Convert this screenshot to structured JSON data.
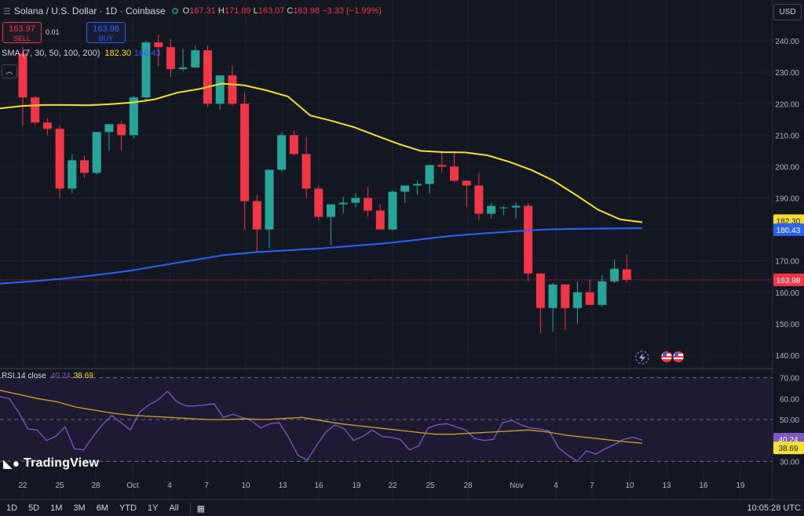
{
  "header": {
    "title": "Solana / U.S. Dollar · 1D · Coinbase",
    "open_label": "O",
    "open": "167.31",
    "high_label": "H",
    "high": "171.89",
    "low_label": "L",
    "low": "163.07",
    "close_label": "C",
    "close": "163.98",
    "change": "−3.33 (−1.99%)"
  },
  "trade": {
    "sell_price": "163.97",
    "sell_label": "SELL",
    "spread": "0.01",
    "buy_price": "163.98",
    "buy_label": "BUY"
  },
  "currency": "USD",
  "sma_legend": {
    "label": "SMA (7, 30, 50, 100, 200)",
    "value1": "182.30",
    "value2": "180.43"
  },
  "rsi_legend": {
    "label": "RSI 14 close",
    "value1": "40.24",
    "value2": "38.69"
  },
  "brand": "TradingView",
  "timeframes": [
    "1D",
    "5D",
    "1M",
    "3M",
    "6M",
    "YTD",
    "1Y",
    "All"
  ],
  "clock": "10:05:28 UTC",
  "colors": {
    "up": "#26a69a",
    "down": "#f23645",
    "sma_yellow": "#f7e02a",
    "sma_blue": "#2962ff",
    "rsi": "#7e57c2",
    "bg": "#131722"
  },
  "icons": [
    "menu-icon",
    "status-dot-icon",
    "collapse-arrow-icon",
    "tradingview-logo-icon",
    "calendar-icon",
    "lightning-event-icon",
    "us-flag-event-icon"
  ],
  "chart_data": [
    {
      "type": "candlestick",
      "ylim": [
        137,
        248
      ],
      "y_ticks": [
        140,
        150,
        160,
        170,
        180,
        190,
        200,
        210,
        220,
        230,
        240
      ],
      "x_ticks": [
        "22",
        "25",
        "28",
        "Oct",
        "4",
        "7",
        "10",
        "13",
        "16",
        "19",
        "22",
        "25",
        "28",
        "Nov",
        "4",
        "7",
        "10",
        "13",
        "16",
        "19"
      ],
      "price_labels": {
        "sma_yellow": "182.30",
        "sma_blue": "180.43",
        "last": "163.98"
      },
      "ohlc": [
        [
          235.9,
          238.0,
          213.0,
          222.0
        ],
        [
          222.0,
          222.5,
          213.2,
          214.0
        ],
        [
          214.0,
          215.5,
          210.0,
          212.0
        ],
        [
          212.0,
          213.0,
          190.0,
          193.0
        ],
        [
          193.0,
          204.0,
          191.5,
          202.0
        ],
        [
          202.0,
          203.5,
          196.5,
          198.0
        ],
        [
          198.0,
          211.0,
          197.5,
          211.0
        ],
        [
          211.0,
          212.5,
          205.0,
          213.5
        ],
        [
          213.5,
          214.5,
          205.0,
          210.0
        ],
        [
          210.0,
          222.5,
          209.0,
          222.0
        ],
        [
          222.0,
          240.0,
          220.5,
          239.5
        ],
        [
          239.5,
          242.0,
          232.0,
          238.0
        ],
        [
          238.0,
          240.5,
          228.5,
          231.0
        ],
        [
          231.0,
          237.5,
          230.5,
          231.5
        ],
        [
          231.5,
          238.5,
          231.5,
          237.0
        ],
        [
          237.0,
          238.5,
          219.0,
          220.0
        ],
        [
          220.0,
          229.0,
          218.0,
          229.0
        ],
        [
          229.0,
          232.0,
          219.5,
          220.0
        ],
        [
          220.0,
          223.5,
          180.0,
          189.0
        ],
        [
          189.0,
          191.0,
          173.0,
          180.0
        ],
        [
          180.0,
          198.0,
          174.0,
          199.0
        ],
        [
          199.0,
          211.0,
          198.5,
          210.0
        ],
        [
          210.0,
          211.5,
          203.5,
          204.0
        ],
        [
          204.0,
          209.5,
          190.0,
          193.0
        ],
        [
          193.0,
          194.0,
          183.0,
          184.0
        ],
        [
          184.0,
          188.0,
          175.0,
          188.0
        ],
        [
          188.0,
          190.5,
          185.0,
          188.5
        ],
        [
          188.5,
          191.5,
          187.0,
          190.0
        ],
        [
          190.0,
          193.5,
          184.0,
          186.0
        ],
        [
          186.0,
          188.0,
          180.0,
          180.0
        ],
        [
          180.0,
          192.5,
          179.5,
          192.0
        ],
        [
          192.0,
          194.0,
          188.5,
          194.0
        ],
        [
          194.0,
          195.5,
          191.0,
          194.5
        ],
        [
          194.5,
          200.5,
          191.5,
          200.5
        ],
        [
          200.5,
          204.5,
          198.0,
          200.0
        ],
        [
          200.0,
          205.0,
          195.0,
          195.5
        ],
        [
          195.5,
          195.5,
          187.0,
          194.0
        ],
        [
          194.0,
          198.0,
          183.0,
          185.0
        ],
        [
          185.0,
          188.5,
          183.5,
          187.5
        ],
        [
          187.0,
          187.5,
          184.5,
          187.0
        ],
        [
          187.0,
          188.5,
          183.5,
          187.5
        ],
        [
          187.5,
          188.5,
          163.5,
          166.0
        ],
        [
          166.0,
          166.0,
          147.0,
          155.0
        ],
        [
          155.0,
          163.0,
          147.5,
          162.5
        ],
        [
          162.5,
          162.5,
          148.0,
          155.0
        ],
        [
          155.0,
          163.5,
          150.0,
          160.0
        ],
        [
          160.0,
          164.0,
          156.0,
          156.0
        ],
        [
          156.0,
          165.5,
          155.5,
          163.5
        ],
        [
          163.5,
          170.5,
          163.0,
          167.5
        ],
        [
          167.31,
          171.89,
          163.07,
          163.98
        ]
      ],
      "sma_yellow_series": [
        218.5,
        219.3,
        219.6,
        219.6,
        219.5,
        219.9,
        220.4,
        221.4,
        223.5,
        224.7,
        226.4,
        225.9,
        224.3,
        222.3,
        216.3,
        214.5,
        212.5,
        209.8,
        207.2,
        205.0,
        204.6,
        204.5,
        203.6,
        201.5,
        198.9,
        195.5,
        191.0,
        186.3,
        183.2,
        182.3
      ],
      "sma_blue_series": [
        162.8,
        163.5,
        164.4,
        165.5,
        166.8,
        168.5,
        170.2,
        171.9,
        172.8,
        173.4,
        174.0,
        174.8,
        175.6,
        176.7,
        177.9,
        178.7,
        179.4,
        180.0,
        180.2,
        180.3,
        180.43
      ]
    },
    {
      "type": "line",
      "title": "RSI 14 close",
      "ylim": [
        26,
        74
      ],
      "y_ticks": [
        30,
        40,
        50,
        60,
        70
      ],
      "price_labels": {
        "rsi": "40.24",
        "rsi_ma": "38.69"
      },
      "series": [
        {
          "name": "RSI",
          "values": [
            61.0,
            60.0,
            53.5,
            45.5,
            45.0,
            40.0,
            42.0,
            46.5,
            36.0,
            35.5,
            42.0,
            47.5,
            52.0,
            48.5,
            45.0,
            53.5,
            57.0,
            59.5,
            63.5,
            58.5,
            56.5,
            56.5,
            57.0,
            57.5,
            51.0,
            52.5,
            51.0,
            49.5,
            46.0,
            48.0,
            48.5,
            41.5,
            33.0,
            30.5,
            37.5,
            44.0,
            47.5,
            45.5,
            40.0,
            42.0,
            45.0,
            42.0,
            41.5,
            40.5,
            35.5,
            37.5,
            46.0,
            47.5,
            48.0,
            46.5,
            45.0,
            41.0,
            40.0,
            40.5,
            48.5,
            49.5,
            47.5,
            46.0,
            45.5,
            44.5,
            36.5,
            33.0,
            30.0,
            35.0,
            33.5,
            36.0,
            38.0,
            40.5,
            41.5,
            40.24
          ]
        },
        {
          "name": "RSI-based MA",
          "values": [
            64.0,
            62.0,
            60.0,
            58.5,
            56.0,
            54.5,
            53.0,
            52.0,
            51.5,
            51.0,
            50.5,
            50.0,
            50.0,
            50.3,
            50.0,
            50.5,
            51.0,
            49.5,
            48.0,
            47.0,
            46.0,
            45.0,
            44.0,
            43.0,
            43.0,
            43.5,
            44.0,
            44.5,
            45.0,
            44.0,
            42.5,
            41.5,
            40.5,
            39.5,
            38.69
          ]
        }
      ]
    }
  ]
}
